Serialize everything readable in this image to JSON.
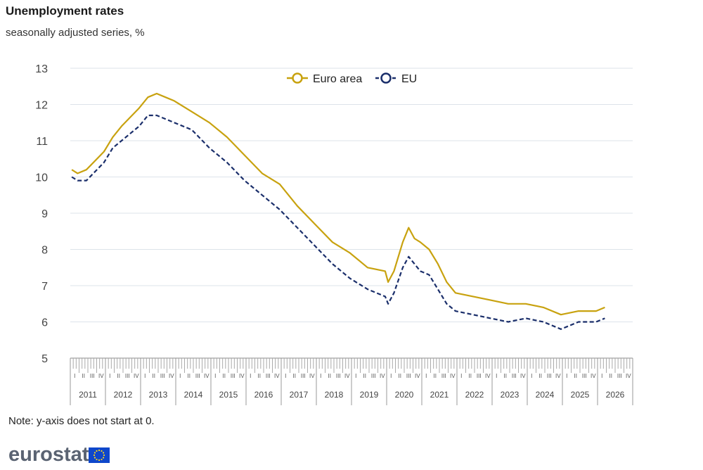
{
  "header": {
    "title": "Unemployment rates",
    "subtitle": "seasonally adjusted series, %"
  },
  "note": "Note: y-axis does not start at 0.",
  "logo": {
    "text": "eurostat",
    "icon": "eu-flag-icon"
  },
  "colors": {
    "euro_area": "#c8a20f",
    "eu": "#1b2f6b",
    "grid": "#dde3ea",
    "axis": "#888888"
  },
  "chart_data": {
    "type": "line",
    "ylim": [
      5,
      13
    ],
    "yticks": [
      5,
      6,
      7,
      8,
      9,
      10,
      11,
      12,
      13
    ],
    "years": [
      "2011",
      "2012",
      "2013",
      "2014",
      "2015",
      "2016",
      "2017",
      "2018",
      "2019",
      "2020",
      "2021",
      "2022",
      "2023",
      "2024",
      "2025",
      "2026"
    ],
    "quarters": [
      "I",
      "II",
      "III",
      "IV"
    ],
    "legend_position": "top-center",
    "series": [
      {
        "name": "Euro area",
        "style": "solid",
        "x": [
          "2011-01",
          "2011-03",
          "2011-06",
          "2011-12",
          "2012-03",
          "2012-06",
          "2012-12",
          "2013-03",
          "2013-06",
          "2013-09",
          "2013-12",
          "2014-06",
          "2014-12",
          "2015-06",
          "2015-12",
          "2016-06",
          "2016-12",
          "2017-06",
          "2017-12",
          "2018-06",
          "2018-12",
          "2019-06",
          "2019-12",
          "2020-01",
          "2020-03",
          "2020-06",
          "2020-08",
          "2020-10",
          "2020-12",
          "2021-03",
          "2021-06",
          "2021-09",
          "2021-12",
          "2022-06",
          "2022-12",
          "2023-06",
          "2023-12",
          "2024-06",
          "2024-12",
          "2025-06",
          "2025-12",
          "2026-03"
        ],
        "values": [
          10.2,
          10.1,
          10.2,
          10.7,
          11.1,
          11.4,
          11.9,
          12.2,
          12.3,
          12.2,
          12.1,
          11.8,
          11.5,
          11.1,
          10.6,
          10.1,
          9.8,
          9.2,
          8.7,
          8.2,
          7.9,
          7.5,
          7.4,
          7.1,
          7.4,
          8.2,
          8.6,
          8.3,
          8.2,
          8.0,
          7.6,
          7.1,
          6.8,
          6.7,
          6.6,
          6.5,
          6.5,
          6.4,
          6.2,
          6.3,
          6.3,
          6.4
        ]
      },
      {
        "name": "EU",
        "style": "dashed",
        "x": [
          "2011-01",
          "2011-03",
          "2011-06",
          "2011-12",
          "2012-03",
          "2012-06",
          "2012-12",
          "2013-03",
          "2013-06",
          "2013-09",
          "2013-12",
          "2014-06",
          "2014-12",
          "2015-06",
          "2015-12",
          "2016-06",
          "2016-12",
          "2017-06",
          "2017-12",
          "2018-06",
          "2018-12",
          "2019-06",
          "2019-12",
          "2020-01",
          "2020-03",
          "2020-06",
          "2020-08",
          "2020-10",
          "2020-12",
          "2021-03",
          "2021-06",
          "2021-09",
          "2021-12",
          "2022-06",
          "2022-12",
          "2023-06",
          "2023-12",
          "2024-06",
          "2024-12",
          "2025-06",
          "2025-12",
          "2026-03"
        ],
        "values": [
          10.0,
          9.9,
          9.9,
          10.4,
          10.8,
          11.0,
          11.4,
          11.7,
          11.7,
          11.6,
          11.5,
          11.3,
          10.8,
          10.4,
          9.9,
          9.5,
          9.1,
          8.6,
          8.1,
          7.6,
          7.2,
          6.9,
          6.7,
          6.5,
          6.8,
          7.5,
          7.8,
          7.6,
          7.4,
          7.3,
          6.9,
          6.5,
          6.3,
          6.2,
          6.1,
          6.0,
          6.1,
          6.0,
          5.8,
          6.0,
          6.0,
          6.1
        ]
      }
    ]
  }
}
